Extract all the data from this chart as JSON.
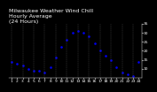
{
  "title": "Milwaukee Weather Wind Chill",
  "subtitle1": "Hourly Average",
  "subtitle2": "(24 Hours)",
  "hours": [
    1,
    2,
    3,
    4,
    5,
    6,
    7,
    8,
    9,
    10,
    11,
    12,
    13,
    14,
    15,
    16,
    17,
    18,
    19,
    20,
    21,
    22,
    23,
    24
  ],
  "wind_chill": [
    14,
    13,
    12,
    10,
    9,
    9,
    8,
    11,
    16,
    22,
    26,
    30,
    31,
    30,
    28,
    24,
    20,
    17,
    15,
    11,
    8,
    7,
    6,
    14
  ],
  "dot_color": "#0000ee",
  "bg_color": "#000000",
  "grid_color": "#555555",
  "title_color": "#ffffff",
  "tick_color": "#ffffff",
  "ylim_min": 5,
  "ylim_max": 35,
  "ytick_vals": [
    10,
    15,
    20,
    25,
    30,
    35
  ],
  "ytick_labels": [
    "10",
    "15",
    "20",
    "25",
    "30",
    "35"
  ],
  "title_fontsize": 4.5,
  "tick_fontsize": 3.2,
  "dot_size": 1.8,
  "vgrid_positions": [
    1,
    3,
    5,
    7,
    9,
    11,
    13,
    15,
    17,
    19,
    21,
    23
  ]
}
